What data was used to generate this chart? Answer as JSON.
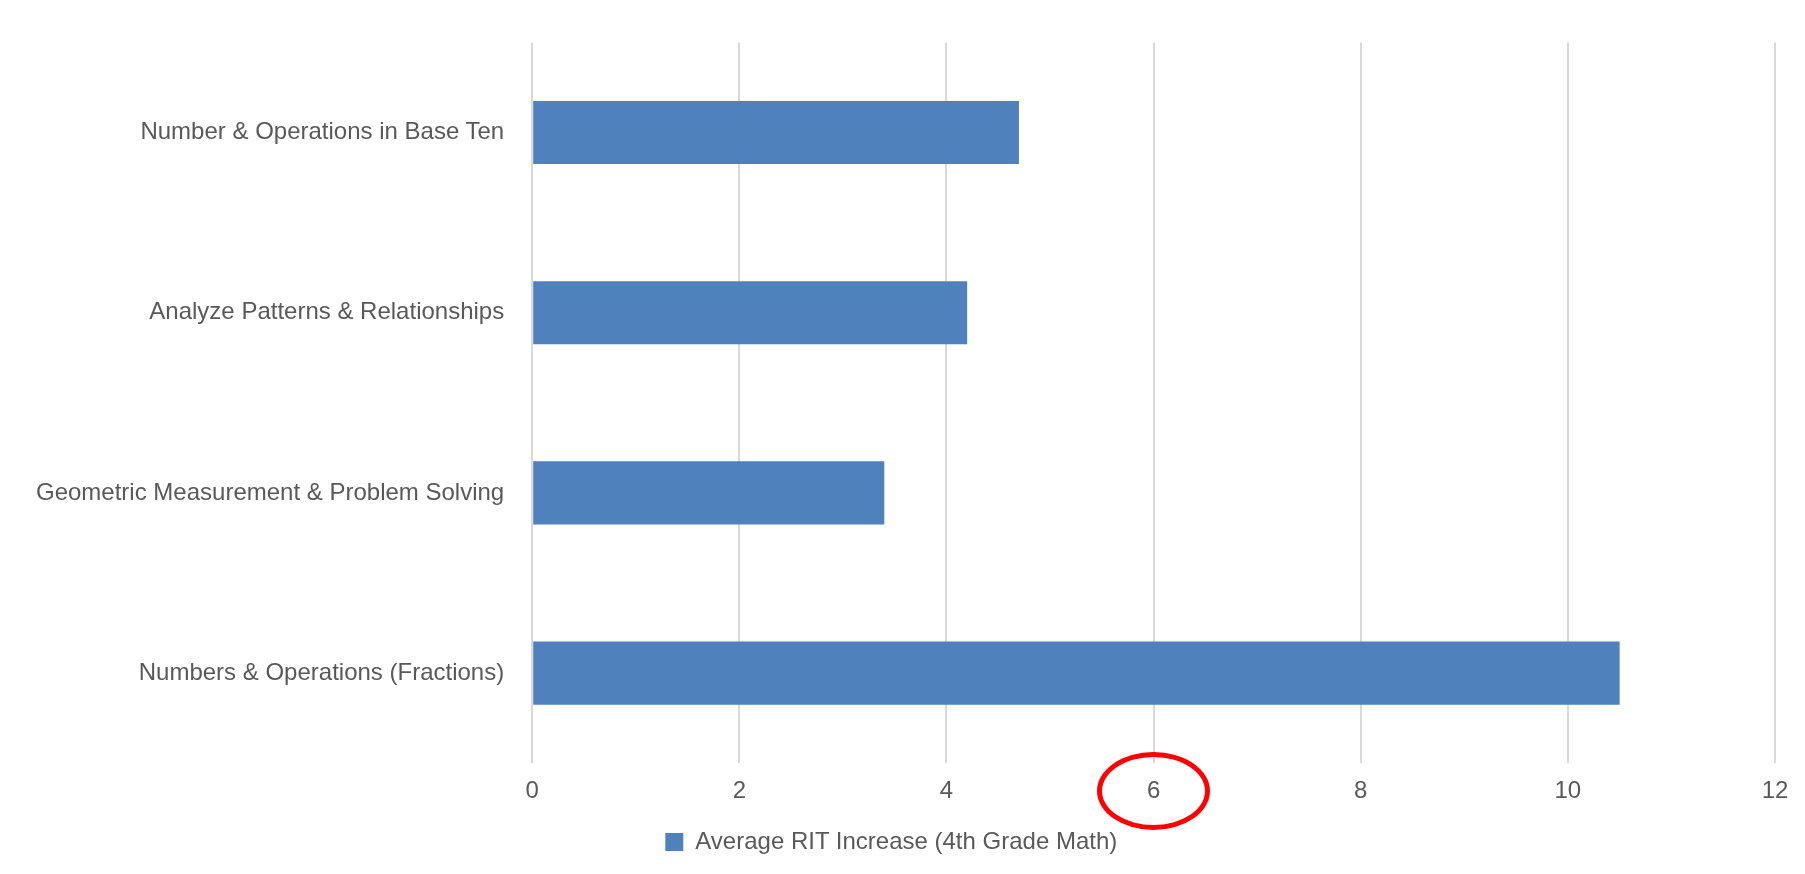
{
  "chart_data": {
    "type": "bar",
    "orientation": "horizontal",
    "categories": [
      "Number & Operations in Base Ten",
      "Analyze Patterns & Relationships",
      "Geometric Measurement & Problem Solving",
      "Numbers & Operations (Fractions)"
    ],
    "series": [
      {
        "name": "Average RIT Increase (4th Grade Math)",
        "color": "#4f81bd",
        "values": [
          4.7,
          4.2,
          3.4,
          10.5
        ]
      }
    ],
    "xlim": [
      0,
      12
    ],
    "xticks": [
      0,
      2,
      4,
      6,
      8,
      10,
      12
    ],
    "grid": "x",
    "legend": "bottom"
  }
}
